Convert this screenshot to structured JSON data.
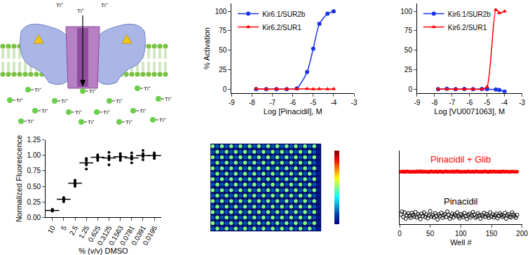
{
  "diagram": {
    "ion_label": "Tl⁺"
  },
  "chart_data": [
    {
      "type": "line",
      "x_label": "Log [Pinacidil], M",
      "y_label": "% Activation",
      "x": [
        -7.8,
        -7.3,
        -6.8,
        -6.3,
        -5.8,
        -5.3,
        -5.0,
        -4.7,
        -4.3,
        -4.0
      ],
      "series": [
        {
          "name": "Kir6.1/SUR2b",
          "color": "#1a34e6",
          "marker": "circle",
          "values": [
            0,
            0,
            0,
            0,
            1,
            22,
            52,
            84,
            97,
            100
          ]
        },
        {
          "name": "Kir6.2/SUR1",
          "color": "#ff0000",
          "marker": "triangle-up",
          "values": [
            0.5,
            0,
            0.3,
            0,
            0.2,
            0.4,
            0,
            0.3,
            0.1,
            0.2
          ]
        }
      ],
      "xlim": [
        -9,
        -3
      ],
      "xticks": [
        -9,
        -8,
        -7,
        -6,
        -5,
        -4,
        -3
      ],
      "ylim": [
        -5,
        110
      ],
      "yticks": [
        0,
        25,
        50,
        75,
        100
      ],
      "legend": "upper left",
      "grid": false
    },
    {
      "type": "line",
      "x_label": "Log [VU0071063], M",
      "x": [
        -7.8,
        -7.3,
        -6.8,
        -6.3,
        -5.8,
        -5.3,
        -5.0,
        -4.5,
        -4.3,
        -4.0
      ],
      "series": [
        {
          "name": "Kir6.1/SUR2b",
          "color": "#1a34e6",
          "marker": "circle",
          "values": [
            0,
            0.5,
            0,
            0.3,
            0,
            0.2,
            0,
            -0.5,
            -1,
            -3
          ]
        },
        {
          "name": "Kir6.2/SUR1",
          "color": "#ff0000",
          "marker": "triangle-up",
          "values": [
            0,
            0,
            0,
            0,
            0,
            0,
            3,
            102,
            98,
            100
          ]
        }
      ],
      "xlim": [
        -9,
        -3
      ],
      "xticks": [
        -9,
        -8,
        -7,
        -6,
        -5,
        -4,
        -3
      ],
      "ylim": [
        -5,
        110
      ],
      "yticks": [
        0,
        25,
        50,
        75,
        100
      ],
      "legend": "upper left",
      "grid": false
    },
    {
      "type": "dot_plot",
      "x_label": "% (v/v) DMSO",
      "y_label": "Normalized Fluorescence",
      "categories": [
        "10",
        "5",
        "2.5",
        "1.25",
        "0.625",
        "0.3125",
        "0.1563",
        "0.0781",
        "0.0391",
        "0.0195"
      ],
      "replicates": [
        [
          0.1,
          0.11,
          0.12,
          0.1,
          0.13
        ],
        [
          0.25,
          0.28,
          0.3,
          0.32,
          0.29
        ],
        [
          0.5,
          0.53,
          0.55,
          0.57,
          0.6
        ],
        [
          0.78,
          0.85,
          0.88,
          0.92,
          0.95
        ],
        [
          0.92,
          0.95,
          0.97,
          0.99,
          1.01
        ],
        [
          0.85,
          0.93,
          0.96,
          0.99,
          1.05
        ],
        [
          0.92,
          0.95,
          0.98,
          1.0,
          1.03
        ],
        [
          0.88,
          0.94,
          0.97,
          0.99,
          1.04
        ],
        [
          0.93,
          0.98,
          1.0,
          1.03,
          1.08
        ],
        [
          0.95,
          0.98,
          1.0,
          1.02,
          1.04
        ]
      ],
      "means": [
        0.11,
        0.29,
        0.55,
        0.88,
        0.97,
        0.96,
        0.98,
        0.96,
        1.0,
        1.0
      ],
      "color": "#000000",
      "ylim": [
        0,
        1.25
      ],
      "yticks": [
        {
          "value": 0,
          "label": "0.00"
        },
        0.25,
        {
          "value": 0.5,
          "label": "0.50"
        },
        0.75,
        {
          "value": 1,
          "label": "1.00"
        },
        1.25
      ],
      "grid": false
    },
    {
      "type": "plate_heatmap",
      "cells": [
        [
          0.5,
          0.15,
          0.5,
          0.15,
          0.5,
          0.15,
          0.5,
          0.15,
          0.5,
          0.15,
          0.5,
          0.15,
          0.5,
          0.15,
          0.5,
          0.15,
          0.5,
          0.15,
          0.5,
          0.15,
          0.5,
          0.15,
          0.5,
          0.05
        ],
        [
          0.15,
          0.5,
          0.15,
          0.5,
          0.15,
          0.5,
          0.15,
          0.5,
          0.15,
          0.5,
          0.15,
          0.5,
          0.15,
          0.5,
          0.15,
          0.5,
          0.15,
          0.5,
          0.15,
          0.5,
          0.15,
          0.5,
          0.15,
          0.05
        ],
        [
          0.5,
          0.15,
          0.5,
          0.15,
          0.5,
          0.15,
          0.5,
          0.15,
          0.5,
          0.15,
          0.5,
          0.15,
          0.5,
          0.15,
          0.5,
          0.15,
          0.5,
          0.15,
          0.5,
          0.15,
          0.5,
          0.15,
          0.5,
          0.05
        ],
        [
          0.15,
          0.5,
          0.15,
          0.5,
          0.15,
          0.5,
          0.15,
          0.5,
          0.15,
          0.5,
          0.15,
          0.5,
          0.15,
          0.5,
          0.15,
          0.5,
          0.15,
          0.5,
          0.15,
          0.5,
          0.15,
          0.5,
          0.15,
          0.05
        ],
        [
          0.5,
          0.15,
          0.5,
          0.15,
          0.5,
          0.15,
          0.5,
          0.15,
          0.5,
          0.15,
          0.5,
          0.15,
          0.5,
          0.15,
          0.5,
          0.15,
          0.5,
          0.15,
          0.5,
          0.15,
          0.5,
          0.15,
          0.5,
          0.05
        ],
        [
          0.15,
          0.5,
          0.15,
          0.5,
          0.15,
          0.5,
          0.15,
          0.5,
          0.15,
          0.5,
          0.15,
          0.5,
          0.15,
          0.5,
          0.15,
          0.5,
          0.15,
          0.5,
          0.15,
          0.5,
          0.15,
          0.5,
          0.15,
          0.05
        ],
        [
          0.5,
          0.15,
          0.5,
          0.15,
          0.5,
          0.15,
          0.5,
          0.15,
          0.5,
          0.15,
          0.5,
          0.15,
          0.5,
          0.15,
          0.5,
          0.15,
          0.5,
          0.15,
          0.5,
          0.15,
          0.5,
          0.15,
          0.5,
          0.05
        ],
        [
          0.15,
          0.5,
          0.15,
          0.5,
          0.15,
          0.5,
          0.15,
          0.5,
          0.15,
          0.5,
          0.15,
          0.5,
          0.15,
          0.5,
          0.15,
          0.5,
          0.15,
          0.5,
          0.15,
          0.5,
          0.15,
          0.5,
          0.15,
          0.05
        ],
        [
          0.5,
          0.15,
          0.5,
          0.15,
          0.5,
          0.15,
          0.5,
          0.15,
          0.5,
          0.15,
          0.5,
          0.15,
          0.5,
          0.15,
          0.5,
          0.15,
          0.5,
          0.15,
          0.5,
          0.15,
          0.5,
          0.15,
          0.5,
          0.05
        ],
        [
          0.15,
          0.5,
          0.15,
          0.5,
          0.15,
          0.5,
          0.15,
          0.5,
          0.15,
          0.5,
          0.15,
          0.5,
          0.15,
          0.5,
          0.15,
          0.5,
          0.15,
          0.5,
          0.15,
          0.5,
          0.15,
          0.5,
          0.15,
          0.05
        ],
        [
          0.5,
          0.15,
          0.5,
          0.15,
          0.5,
          0.15,
          0.5,
          0.15,
          0.5,
          0.15,
          0.5,
          0.15,
          0.5,
          0.15,
          0.5,
          0.15,
          0.5,
          0.15,
          0.5,
          0.15,
          0.5,
          0.15,
          0.5,
          0.05
        ],
        [
          0.15,
          0.5,
          0.15,
          0.5,
          0.15,
          0.5,
          0.15,
          0.5,
          0.15,
          0.5,
          0.15,
          0.5,
          0.15,
          0.5,
          0.15,
          0.5,
          0.15,
          0.5,
          0.15,
          0.5,
          0.15,
          0.5,
          0.15,
          0.05
        ],
        [
          0.5,
          0.15,
          0.5,
          0.15,
          0.5,
          0.15,
          0.5,
          0.15,
          0.5,
          0.15,
          0.5,
          0.15,
          0.5,
          0.15,
          0.5,
          0.15,
          0.5,
          0.15,
          0.5,
          0.15,
          0.5,
          0.15,
          0.5,
          0.05
        ],
        [
          0.15,
          0.5,
          0.15,
          0.5,
          0.15,
          0.5,
          0.15,
          0.5,
          0.15,
          0.5,
          0.15,
          0.5,
          0.15,
          0.5,
          0.15,
          0.5,
          0.15,
          0.5,
          0.15,
          0.5,
          0.15,
          0.5,
          0.15,
          0.05
        ],
        [
          0.5,
          0.15,
          0.5,
          0.15,
          0.5,
          0.15,
          0.5,
          0.15,
          0.5,
          0.15,
          0.5,
          0.15,
          0.5,
          0.15,
          0.5,
          0.15,
          0.5,
          0.15,
          0.5,
          0.15,
          0.5,
          0.15,
          0.5,
          0.05
        ],
        [
          0.15,
          0.5,
          0.15,
          0.5,
          0.15,
          0.5,
          0.15,
          0.5,
          0.15,
          0.5,
          0.15,
          0.5,
          0.15,
          0.5,
          0.15,
          0.5,
          0.15,
          0.5,
          0.15,
          0.5,
          0.15,
          0.5,
          0.15,
          0.05
        ]
      ],
      "color_range": [
        0,
        1
      ],
      "tick_labels": false
    },
    {
      "type": "scatter",
      "x_label": "Well #",
      "x": [
        2,
        4,
        6,
        8,
        10,
        12,
        14,
        16,
        18,
        20,
        22,
        24,
        26,
        28,
        30,
        32,
        34,
        36,
        38,
        40,
        42,
        44,
        46,
        48,
        50,
        52,
        54,
        56,
        58,
        60,
        62,
        64,
        66,
        68,
        70,
        72,
        74,
        76,
        78,
        80,
        82,
        84,
        86,
        88,
        90,
        92,
        94,
        96,
        98,
        100,
        102,
        104,
        106,
        108,
        110,
        112,
        114,
        116,
        118,
        120,
        122,
        124,
        126,
        128,
        130,
        132,
        134,
        136,
        138,
        140,
        142,
        144,
        146,
        148,
        150,
        152,
        154,
        156,
        158,
        160,
        162,
        164,
        166,
        168,
        170,
        172,
        174,
        176,
        178,
        180,
        182,
        184,
        186,
        188,
        190,
        192
      ],
      "series": [
        {
          "name": "Pinacidil + Glib",
          "color": "#ff0000",
          "marker": "circle",
          "values": [
            100.2,
            99.5,
            100.8,
            99.2,
            100.3,
            101.0,
            99.7,
            100.5,
            99.1,
            100.1,
            99.8,
            100.6,
            99.4,
            100.9,
            99.6,
            100.2,
            101.2,
            99.3,
            100.4,
            99.9,
            100.7,
            99.5,
            100.1,
            99.0,
            100.5,
            100.9,
            99.6,
            100.3,
            99.8,
            101.1,
            99.4,
            100.2,
            100.8,
            99.7,
            100.0,
            99.2,
            100.6,
            101.0,
            99.5,
            100.3,
            100.1,
            99.6,
            100.9,
            99.3,
            100.4,
            99.8,
            101.2,
            99.9,
            100.5,
            99.1,
            100.3,
            99.7,
            100.7,
            99.4,
            100.0,
            100.8,
            99.5,
            100.2,
            99.9,
            100.6,
            99.2,
            100.4,
            101.0,
            99.6,
            100.1,
            99.8,
            100.7,
            99.3,
            100.5,
            100.9,
            99.7,
            100.2,
            99.4,
            100.8,
            99.9,
            100.3,
            101.1,
            99.5,
            100.0,
            99.6,
            100.4,
            99.2,
            100.6,
            99.8,
            100.9,
            99.5,
            100.1,
            100.7,
            99.3,
            100.2,
            99.9,
            100.5,
            99.6,
            100.3,
            99.8,
            100.0
          ]
        },
        {
          "name": "Pinacidil",
          "color": "#000000",
          "marker": "circle-open",
          "values": [
            -2,
            5,
            -8,
            3,
            -12,
            -4,
            1,
            -6,
            -10,
            2,
            -3,
            -7,
            4,
            -9,
            -1,
            -5,
            -13,
            0,
            -6,
            3,
            -8,
            -2,
            -11,
            -4,
            6,
            -7,
            -3,
            -9,
            1,
            -5,
            -14,
            -2,
            -6,
            2,
            -10,
            -4,
            -1,
            -8,
            5,
            -3,
            -12,
            -6,
            0,
            -9,
            -2,
            -5,
            3,
            -7,
            -11,
            -1,
            -4,
            -8,
            2,
            -6,
            -13,
            -3,
            0,
            -9,
            -5,
            4,
            -2,
            -10,
            -7,
            1,
            -4,
            -12,
            -3,
            -6,
            2,
            -8,
            -1,
            -5,
            -10,
            3,
            -7,
            -2,
            -9,
            -4,
            0,
            -11,
            -6,
            1,
            -3,
            -8,
            -5,
            2,
            -12,
            -4,
            -1,
            -7,
            -9,
            3,
            -2,
            -6,
            -10,
            -3
          ]
        }
      ],
      "xlim": [
        0,
        200
      ],
      "xticks": [
        0,
        50,
        100,
        150,
        200
      ],
      "ylim": [
        -25,
        150
      ],
      "tick_labels": "x",
      "grid": false
    }
  ]
}
